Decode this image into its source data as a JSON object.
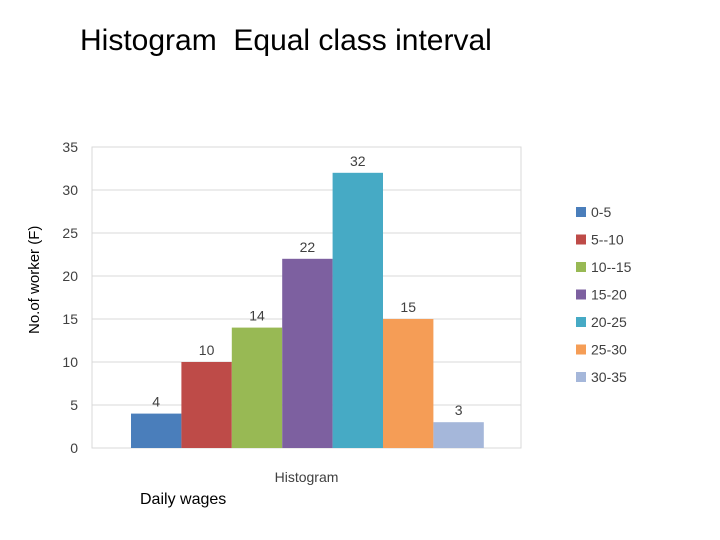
{
  "slide": {
    "title": "Histogram  Equal class interval",
    "ylabel": "No.of worker (F)",
    "xlabel": "Daily wages"
  },
  "chart_data": {
    "type": "bar",
    "title": "Histogram",
    "xlabel": "Daily wages",
    "ylabel": "No.of worker (F)",
    "categories": [
      "0-5",
      "5--10",
      "10--15",
      "15-20",
      "20-25",
      "25-30",
      "30-35"
    ],
    "values": [
      4,
      10,
      14,
      22,
      32,
      15,
      3
    ],
    "colors": [
      "#4A7EBB",
      "#BE4B48",
      "#98B954",
      "#7D60A0",
      "#46AAC5",
      "#F59D56",
      "#A5B7DA"
    ],
    "ylim": [
      0,
      35
    ],
    "yticks": [
      0,
      5,
      10,
      15,
      20,
      25,
      30,
      35
    ],
    "grid": true,
    "legend": "right",
    "data_labels": true
  }
}
